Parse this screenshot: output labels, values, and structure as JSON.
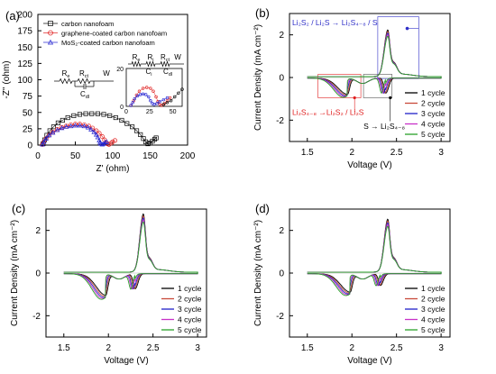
{
  "colors": {
    "c1": "#000000",
    "c2": "#c84a3a",
    "c3": "#2020c8",
    "c4": "#c832c8",
    "c5": "#28a028",
    "eis_carbon": "#000000",
    "eis_graphene": "#e02020",
    "eis_mos2": "#2020d0",
    "callout_blue": "#3030c8",
    "callout_red": "#e02020"
  },
  "chart_data": [
    {
      "id": "a",
      "panel_label": "(a)",
      "type": "scatter",
      "xlabel": "Z' (ohm)",
      "ylabel": "-Z'' (ohm)",
      "xlim": [
        0,
        200
      ],
      "ylim": [
        0,
        200
      ],
      "xticks": [
        0,
        50,
        100,
        150,
        200
      ],
      "yticks": [
        0,
        25,
        50,
        75,
        100,
        125,
        150,
        175,
        200
      ],
      "legend_position": "top-left",
      "legend": [
        {
          "label": "carbon nanofoam",
          "marker": "square",
          "color_key": "eis_carbon"
        },
        {
          "label": "graphene-coated carbon nanofoam",
          "marker": "circle",
          "color_key": "eis_graphene"
        },
        {
          "label": "MoS₂-coated carbon nanofoam",
          "marker": "triangle",
          "color_key": "eis_mos2"
        }
      ],
      "series": [
        {
          "marker": "square",
          "color_key": "eis_carbon",
          "points": [
            [
              7,
              2
            ],
            [
              9,
              8
            ],
            [
              12,
              15
            ],
            [
              16,
              22
            ],
            [
              21,
              28
            ],
            [
              27,
              34
            ],
            [
              33,
              38
            ],
            [
              40,
              42
            ],
            [
              48,
              45
            ],
            [
              56,
              47
            ],
            [
              64,
              48
            ],
            [
              72,
              48
            ],
            [
              80,
              48
            ],
            [
              88,
              47
            ],
            [
              96,
              45
            ],
            [
              104,
              42
            ],
            [
              112,
              38
            ],
            [
              119,
              33
            ],
            [
              126,
              28
            ],
            [
              132,
              22
            ],
            [
              137,
              16
            ],
            [
              141,
              10
            ],
            [
              144,
              5
            ],
            [
              147,
              2
            ],
            [
              150,
              3
            ],
            [
              153,
              6
            ],
            [
              156,
              9
            ],
            [
              158,
              11
            ]
          ]
        },
        {
          "marker": "circle",
          "color_key": "eis_graphene",
          "points": [
            [
              6,
              1
            ],
            [
              8,
              5
            ],
            [
              11,
              10
            ],
            [
              15,
              15
            ],
            [
              20,
              20
            ],
            [
              26,
              24
            ],
            [
              32,
              27
            ],
            [
              38,
              29
            ],
            [
              44,
              31
            ],
            [
              50,
              32
            ],
            [
              56,
              32
            ],
            [
              62,
              31
            ],
            [
              68,
              29
            ],
            [
              73,
              26
            ],
            [
              78,
              22
            ],
            [
              82,
              18
            ],
            [
              86,
              13
            ],
            [
              89,
              8
            ],
            [
              91,
              4
            ],
            [
              93,
              2
            ],
            [
              95,
              1
            ],
            [
              98,
              3
            ],
            [
              100,
              5
            ],
            [
              103,
              7
            ]
          ]
        },
        {
          "marker": "triangle",
          "color_key": "eis_mos2",
          "points": [
            [
              6,
              1
            ],
            [
              8,
              5
            ],
            [
              11,
              10
            ],
            [
              15,
              15
            ],
            [
              20,
              19
            ],
            [
              26,
              23
            ],
            [
              32,
              26
            ],
            [
              38,
              28
            ],
            [
              44,
              29
            ],
            [
              50,
              30
            ],
            [
              56,
              30
            ],
            [
              62,
              29
            ],
            [
              67,
              27
            ],
            [
              71,
              24
            ],
            [
              75,
              20
            ],
            [
              78,
              16
            ],
            [
              80,
              12
            ],
            [
              82,
              7
            ],
            [
              83,
              4
            ],
            [
              84,
              2
            ],
            [
              86,
              1
            ],
            [
              88,
              2
            ],
            [
              90,
              4
            ],
            [
              92,
              5
            ]
          ]
        }
      ],
      "inset": {
        "xlim": [
          0,
          60
        ],
        "ylim": [
          0,
          20
        ],
        "xticks": [
          0,
          25,
          50
        ],
        "yticks": [
          0,
          20
        ],
        "series": [
          {
            "color_key": "eis_graphene",
            "points": [
              [
                5,
                0.5
              ],
              [
                8,
                3
              ],
              [
                11,
                6
              ],
              [
                14,
                8
              ],
              [
                18,
                9.5
              ],
              [
                22,
                10
              ],
              [
                26,
                9.5
              ],
              [
                29,
                8
              ],
              [
                32,
                5
              ],
              [
                34,
                2.5
              ],
              [
                36,
                1
              ],
              [
                38,
                0.5
              ],
              [
                41,
                1.5
              ],
              [
                44,
                3
              ],
              [
                47,
                4.5
              ]
            ]
          },
          {
            "color_key": "eis_mos2",
            "points": [
              [
                5,
                0.5
              ],
              [
                7,
                2
              ],
              [
                9,
                4
              ],
              [
                12,
                5.5
              ],
              [
                15,
                6.2
              ],
              [
                18,
                6.5
              ],
              [
                21,
                6.2
              ],
              [
                24,
                5
              ],
              [
                26,
                3
              ],
              [
                28,
                1.5
              ],
              [
                30,
                1
              ],
              [
                33,
                1.5
              ],
              [
                36,
                2.5
              ],
              [
                40,
                3.5
              ],
              [
                44,
                4.5
              ]
            ]
          },
          {
            "color_key": "eis_carbon",
            "points": [
              [
                40,
                1
              ],
              [
                44,
                2
              ],
              [
                48,
                3
              ],
              [
                52,
                5
              ],
              [
                56,
                7
              ],
              [
                60,
                9
              ]
            ]
          }
        ]
      },
      "circuits": {
        "main": {
          "elements": [
            "R",
            "R",
            "W",
            "C"
          ],
          "subscripts": [
            "e",
            "ct",
            "",
            "dl"
          ]
        },
        "inset": {
          "elements": [
            "R",
            "R",
            "R",
            "W",
            "C",
            "C"
          ],
          "subscripts": [
            "e",
            "i",
            "ct",
            "",
            "i",
            "dl"
          ]
        }
      }
    },
    {
      "id": "b",
      "panel_label": "(b)",
      "type": "line",
      "xlabel": "Voltage (V)",
      "ylabel": "Current Density (mA cm⁻²)",
      "xlim": [
        1.3,
        3.1
      ],
      "ylim": [
        -3.0,
        3.0
      ],
      "xticks": [
        1.5,
        2.0,
        2.5,
        3.0
      ],
      "yticks": [
        -2,
        0,
        2
      ],
      "legend_position": "bottom-right",
      "legend": [
        "1 cycle",
        "2 cycle",
        "3 cycle",
        "4 cycle",
        "5 cycle"
      ],
      "peaks": {
        "ox1": {
          "v": 2.4,
          "h": 2.05
        },
        "red1": {
          "v": 2.38,
          "d": 0.7
        },
        "red2": {
          "v": 1.95,
          "d": 0.75
        }
      },
      "annotations": [
        {
          "text": "Li₂S₂ / Li₂S → Li₂S₄₋₈ / S",
          "color_key": "callout_blue"
        },
        {
          "text": "Li₂S₄₋₈ →Li₂S₂ / Li₂S",
          "color_key": "callout_red"
        },
        {
          "text": "S → Li₂S₄₋₈",
          "color_key": "c1"
        }
      ]
    },
    {
      "id": "c",
      "panel_label": "(c)",
      "type": "line",
      "xlabel": "Voltage (V)",
      "ylabel": "Current Density (mA cm⁻²)",
      "xlim": [
        1.3,
        3.1
      ],
      "ylim": [
        -3.0,
        3.0
      ],
      "xticks": [
        1.5,
        2.0,
        2.5,
        3.0
      ],
      "yticks": [
        -2,
        0,
        2
      ],
      "legend_position": "bottom-right",
      "legend": [
        "1 cycle",
        "2 cycle",
        "3 cycle",
        "4 cycle",
        "5 cycle"
      ],
      "peaks": {
        "ox1": {
          "v": 2.39,
          "h": 2.6
        },
        "red1": {
          "v": 2.3,
          "d": 0.7
        },
        "red2": {
          "v": 1.97,
          "d": 1.0
        }
      }
    },
    {
      "id": "d",
      "panel_label": "(d)",
      "type": "line",
      "xlabel": "Voltage (V)",
      "ylabel": "Current Density (mA cm⁻²)",
      "xlim": [
        1.3,
        3.1
      ],
      "ylim": [
        -3.0,
        3.0
      ],
      "xticks": [
        1.5,
        2.0,
        2.5,
        3.0
      ],
      "yticks": [
        -2,
        0,
        2
      ],
      "legend_position": "bottom-right",
      "legend": [
        "1 cycle",
        "2 cycle",
        "3 cycle",
        "4 cycle",
        "5 cycle"
      ],
      "peaks": {
        "ox1": {
          "v": 2.4,
          "h": 2.35
        },
        "red1": {
          "v": 2.32,
          "d": 0.55
        },
        "red2": {
          "v": 1.98,
          "d": 0.85
        }
      }
    }
  ]
}
